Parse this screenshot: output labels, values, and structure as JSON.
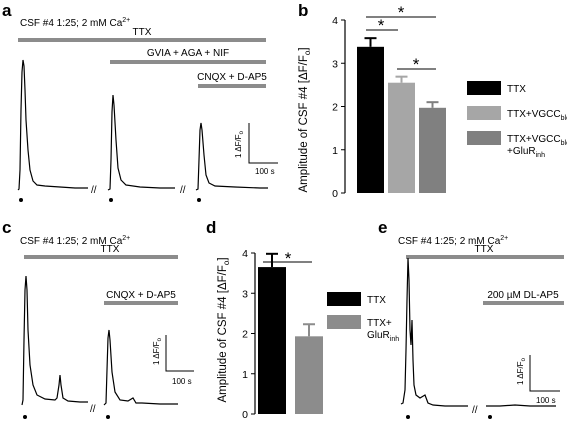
{
  "panels": {
    "a": {
      "label": "a",
      "condition": "CSF #4 1:25; 2 mM Ca",
      "condition_sup": "2+",
      "bars": {
        "ttx": "TTX",
        "vgcc": "GVIA + AGA + NIF",
        "glur": "CNQX + D-AP5"
      },
      "scale": {
        "y": "1 ΔF/F",
        "y_sub": "o",
        "x": "100 s"
      }
    },
    "c": {
      "label": "c",
      "condition": "CSF #4 1:25; 2 mM Ca",
      "condition_sup": "2+",
      "bars": {
        "ttx": "TTX",
        "glur": "CNQX + D-AP5"
      },
      "scale": {
        "y": "1 ΔF/F",
        "y_sub": "o",
        "x": "100 s"
      }
    },
    "e": {
      "label": "e",
      "condition": "CSF #4 1:25; 2 mM Ca",
      "condition_sup": "2+",
      "bars": {
        "ttx": "TTX",
        "dlap5": "200 µM DL-AP5"
      },
      "scale": {
        "y": "1 ΔF/F",
        "y_sub": "o",
        "x": "100 s"
      }
    },
    "b": {
      "label": "b",
      "signif": [
        "*",
        "*",
        "*"
      ]
    },
    "d": {
      "label": "d",
      "signif": [
        "*"
      ]
    }
  },
  "colors": {
    "ttx": "#000000",
    "vgcc": "#a6a6a6",
    "vgcc_glur": "#808080",
    "glur": "#a6a6a6",
    "bar_gray": "#8c8c8c"
  },
  "chart_data": [
    {
      "type": "bar",
      "panel": "b",
      "ylabel": "Amplitude of CSF #4 [ΔF/F",
      "ylabel_sub": "o",
      "ylabel_end": "]",
      "ylim": [
        0,
        4
      ],
      "yticks": [
        "0",
        "1",
        "2",
        "3",
        "4"
      ],
      "categories": [
        "TTX",
        "TTX+VGCC_block",
        "TTX+VGCC_block+GluR_inh"
      ],
      "values": [
        3.38,
        2.55,
        1.97
      ],
      "errors": [
        0.2,
        0.14,
        0.13
      ],
      "legend": [
        {
          "text": "TTX",
          "sub": "",
          "text2": "",
          "sub2": ""
        },
        {
          "text": "TTX+VGCC",
          "sub": "block",
          "text2": "",
          "sub2": ""
        },
        {
          "text": "TTX+VGCC",
          "sub": "block",
          "text2": "+GluR",
          "sub2": "inh"
        }
      ]
    },
    {
      "type": "bar",
      "panel": "d",
      "ylabel": "Amplitude of CSF #4 [ΔF/F",
      "ylabel_sub": "o",
      "ylabel_end": "]",
      "ylim": [
        0,
        4
      ],
      "yticks": [
        "0",
        "1",
        "2",
        "3",
        "4"
      ],
      "categories": [
        "TTX",
        "TTX+GluR_inh"
      ],
      "values": [
        3.65,
        1.93
      ],
      "errors": [
        0.33,
        0.3
      ],
      "legend": [
        {
          "text": "TTX",
          "sub": "",
          "text2": "",
          "sub2": ""
        },
        {
          "text": "TTX+",
          "sub": "",
          "text2": "GluR",
          "sub2": "inh"
        }
      ]
    }
  ]
}
